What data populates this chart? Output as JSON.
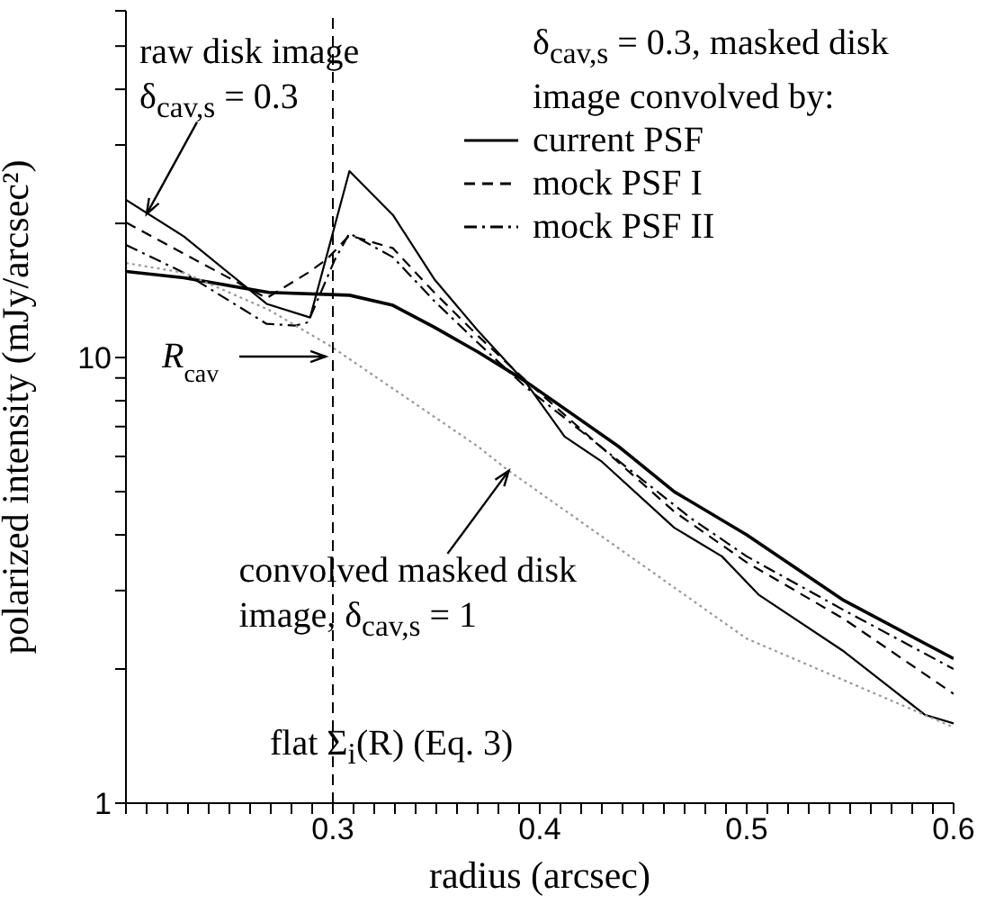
{
  "chart_data": {
    "type": "line",
    "xlabel": "radius (arcsec)",
    "ylabel": "polarized intensity (mJy/arcsec²)",
    "legend_title": "δ$_{cav,s}$ = 0.3, masked disk image convolved by:",
    "legend": "top right",
    "log": "y",
    "marker": "none",
    "xlim": [
      0.2,
      0.6
    ],
    "ylim": [
      1,
      60
    ],
    "xticks": [
      {
        "value": 0.2,
        "label": null
      },
      {
        "value": 0.21,
        "label": null
      },
      {
        "value": 0.22,
        "label": null
      },
      {
        "value": 0.23,
        "label": null
      },
      {
        "value": 0.24,
        "label": null
      },
      {
        "value": 0.25,
        "label": null
      },
      {
        "value": 0.26,
        "label": null
      },
      {
        "value": 0.27,
        "label": null
      },
      {
        "value": 0.28,
        "label": null
      },
      {
        "value": 0.29,
        "label": null
      },
      0.3,
      {
        "value": 0.31,
        "label": null
      },
      {
        "value": 0.32,
        "label": null
      },
      {
        "value": 0.33,
        "label": null
      },
      {
        "value": 0.34,
        "label": null
      },
      {
        "value": 0.35,
        "label": null
      },
      {
        "value": 0.36,
        "label": null
      },
      {
        "value": 0.37,
        "label": null
      },
      {
        "value": 0.38,
        "label": null
      },
      {
        "value": 0.39,
        "label": null
      },
      0.4,
      {
        "value": 0.41,
        "label": null
      },
      {
        "value": 0.42,
        "label": null
      },
      {
        "value": 0.43,
        "label": null
      },
      {
        "value": 0.44,
        "label": null
      },
      {
        "value": 0.45,
        "label": null
      },
      {
        "value": 0.46,
        "label": null
      },
      {
        "value": 0.47,
        "label": null
      },
      {
        "value": 0.48,
        "label": null
      },
      {
        "value": 0.49,
        "label": null
      },
      0.5,
      {
        "value": 0.51,
        "label": null
      },
      {
        "value": 0.52,
        "label": null
      },
      {
        "value": 0.53,
        "label": null
      },
      {
        "value": 0.54,
        "label": null
      },
      {
        "value": 0.55,
        "label": null
      },
      {
        "value": 0.56,
        "label": null
      },
      {
        "value": 0.57,
        "label": null
      },
      {
        "value": 0.58,
        "label": null
      },
      {
        "value": 0.59,
        "label": null
      },
      0.6
    ],
    "yticks": [
      1,
      {
        "value": 2,
        "label": null
      },
      {
        "value": 3,
        "label": null
      },
      {
        "value": 4,
        "label": null
      },
      {
        "value": 5,
        "label": null
      },
      {
        "value": 6,
        "label": null
      },
      {
        "value": 7,
        "label": null
      },
      {
        "value": 8,
        "label": null
      },
      {
        "value": 9,
        "label": null
      },
      10,
      {
        "value": 20,
        "label": null
      },
      {
        "value": 30,
        "label": null
      },
      {
        "value": 40,
        "label": null
      },
      {
        "value": 50,
        "label": null
      },
      {
        "value": 60,
        "label": null
      }
    ],
    "series": [
      {
        "color": "#000000",
        "line_style": "solid",
        "x": [
          0.2,
          0.228,
          0.268,
          0.289,
          0.308,
          0.329,
          0.349,
          0.37,
          0.394,
          0.412,
          0.43,
          0.465,
          0.488,
          0.506,
          0.547,
          0.586,
          0.6
        ],
        "values": [
          22.6,
          18.7,
          13.2,
          12.3,
          26.2,
          20.9,
          15.0,
          11.5,
          8.7,
          6.65,
          5.84,
          4.15,
          3.58,
          2.93,
          2.19,
          1.58,
          1.51
        ]
      },
      {
        "name": "current PSF",
        "color": "#000000",
        "line_style": "solid",
        "x": [
          0.2,
          0.228,
          0.269,
          0.308,
          0.329,
          0.349,
          0.37,
          0.393,
          0.438,
          0.465,
          0.5,
          0.547,
          0.6
        ],
        "values": [
          15.6,
          15.1,
          14.0,
          13.8,
          13.1,
          11.7,
          10.3,
          8.85,
          6.32,
          5.0,
          4.0,
          2.85,
          2.11
        ]
      },
      {
        "name": "mock PSF I",
        "color": "#000000",
        "line_style": "dashed",
        "x": [
          0.2,
          0.228,
          0.268,
          0.288,
          0.297,
          0.308,
          0.329,
          0.349,
          0.37,
          0.393,
          0.465,
          0.5,
          0.547,
          0.6
        ],
        "values": [
          20.1,
          17.1,
          13.6,
          15.5,
          16.6,
          18.8,
          17.6,
          14.0,
          11.2,
          8.9,
          4.51,
          3.47,
          2.59,
          1.76
        ]
      },
      {
        "name": "mock PSF II",
        "color": "#000000",
        "line_style": "dashdot",
        "x": [
          0.2,
          0.228,
          0.268,
          0.282,
          0.288,
          0.301,
          0.308,
          0.329,
          0.349,
          0.37,
          0.393,
          0.473,
          0.5,
          0.547,
          0.6
        ],
        "values": [
          17.9,
          15.5,
          11.9,
          11.8,
          12.0,
          16.6,
          19.0,
          16.8,
          13.4,
          10.8,
          8.6,
          4.36,
          3.58,
          2.71,
          2.0
        ]
      },
      {
        "color": "#999999",
        "line_style": "dotted",
        "x": [
          0.2,
          0.228,
          0.269,
          0.299,
          0.37,
          0.385,
          0.5,
          0.6
        ],
        "values": [
          16.3,
          15.5,
          12.8,
          10.6,
          6.32,
          5.57,
          2.34,
          1.48
        ]
      }
    ],
    "ref_lines": [
      {
        "axis": "x",
        "value": 0.3,
        "label": "R$_{cav}$",
        "color": "#000000",
        "line_style": "dashed"
      }
    ],
    "annotations": [
      {
        "text": "raw disk image δ$_{cav,s}$ = 0.3",
        "x": 0.21,
        "y": 21
      },
      {
        "text": "convolved masked disk image, δ$_{cav,s}$ = 1",
        "x": 0.385,
        "y": 5.57
      },
      "flat Σ$_{i}$(R) (Eq. 3)"
    ]
  }
}
